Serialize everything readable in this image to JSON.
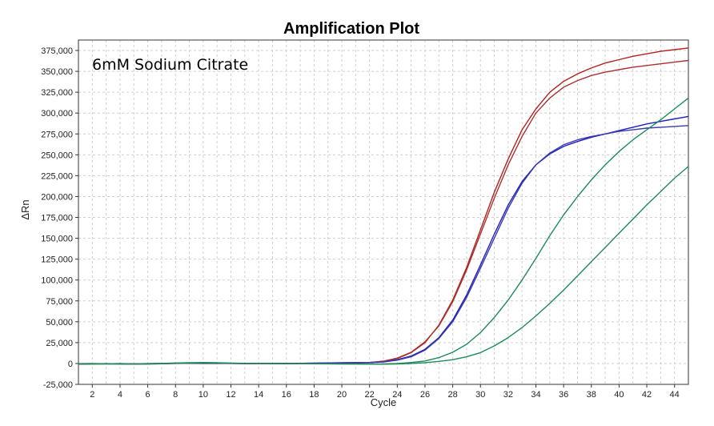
{
  "chart_data": {
    "type": "line",
    "title": "Amplification Plot",
    "annotation": "6mM Sodium Citrate",
    "xlabel": "Cycle",
    "ylabel": "ΔRn",
    "xlim": [
      1,
      45
    ],
    "ylim": [
      -25000,
      387500
    ],
    "x_ticks": [
      2,
      4,
      6,
      8,
      10,
      12,
      14,
      16,
      18,
      20,
      22,
      24,
      26,
      28,
      30,
      32,
      34,
      36,
      38,
      40,
      42,
      44
    ],
    "x_tick_labels": [
      "2",
      "4",
      "6",
      "8",
      "10",
      "12",
      "14",
      "16",
      "18",
      "20",
      "22",
      "24",
      "26",
      "28",
      "30",
      "32",
      "34",
      "36",
      "38",
      "40",
      "42",
      "44"
    ],
    "y_ticks": [
      -25000,
      0,
      25000,
      50000,
      75000,
      100000,
      125000,
      150000,
      175000,
      200000,
      225000,
      250000,
      275000,
      300000,
      325000,
      350000,
      375000
    ],
    "y_tick_labels": [
      "-25,000",
      "0",
      "25,000",
      "50,000",
      "75,000",
      "100,000",
      "125,000",
      "150,000",
      "175,000",
      "200,000",
      "225,000",
      "250,000",
      "275,000",
      "300,000",
      "325,000",
      "350,000",
      "375,000"
    ],
    "grid": true,
    "x": [
      1,
      2,
      3,
      4,
      5,
      6,
      7,
      8,
      9,
      10,
      11,
      12,
      13,
      14,
      15,
      16,
      17,
      18,
      19,
      20,
      21,
      22,
      23,
      24,
      25,
      26,
      27,
      28,
      29,
      30,
      31,
      32,
      33,
      34,
      35,
      36,
      37,
      38,
      39,
      40,
      41,
      42,
      43,
      44,
      45
    ],
    "series": [
      {
        "color": "#b22222",
        "values": [
          -800,
          -600,
          -400,
          -500,
          -700,
          -600,
          -300,
          0,
          200,
          100,
          0,
          200,
          -100,
          0,
          -200,
          -300,
          -100,
          100,
          300,
          500,
          600,
          1000,
          2500,
          6000,
          13000,
          25000,
          46000,
          76000,
          115000,
          160000,
          205000,
          245000,
          280000,
          305000,
          325000,
          338000,
          347000,
          354000,
          360000,
          364000,
          368000,
          371000,
          374000,
          376000,
          378000
        ]
      },
      {
        "color": "#a83232",
        "values": [
          -600,
          -400,
          -300,
          -300,
          -500,
          -400,
          -200,
          100,
          100,
          0,
          100,
          100,
          0,
          -100,
          -100,
          -200,
          0,
          200,
          400,
          600,
          700,
          1200,
          2800,
          6500,
          13500,
          26000,
          45000,
          74000,
          112000,
          155000,
          198000,
          238000,
          272000,
          300000,
          318000,
          331000,
          339000,
          345000,
          349000,
          352000,
          355000,
          357000,
          359000,
          361000,
          363000
        ]
      },
      {
        "color": "#2020c0",
        "values": [
          -500,
          -300,
          -200,
          -400,
          -300,
          -200,
          0,
          300,
          400,
          200,
          100,
          0,
          -100,
          0,
          100,
          0,
          100,
          300,
          700,
          1000,
          1200,
          1300,
          2000,
          4500,
          9000,
          17000,
          31000,
          52000,
          82000,
          118000,
          155000,
          190000,
          218000,
          238000,
          251000,
          260000,
          266000,
          271000,
          275000,
          279000,
          283000,
          287000,
          290000,
          293000,
          296000
        ]
      },
      {
        "color": "#3a3aa8",
        "values": [
          -400,
          -300,
          -300,
          -200,
          -400,
          -300,
          -100,
          200,
          300,
          300,
          200,
          100,
          0,
          100,
          0,
          100,
          200,
          400,
          600,
          800,
          1000,
          1100,
          1800,
          4000,
          8000,
          16000,
          30000,
          50000,
          79000,
          114000,
          150000,
          186000,
          216000,
          238000,
          252000,
          262000,
          268000,
          272000,
          275000,
          278000,
          280000,
          282000,
          283000,
          284000,
          285000
        ]
      },
      {
        "color": "#1e8a5a",
        "values": [
          -200,
          -100,
          -300,
          -200,
          -300,
          -200,
          100,
          600,
          900,
          1200,
          900,
          500,
          200,
          100,
          0,
          -100,
          -200,
          -200,
          -300,
          -400,
          -500,
          -600,
          -500,
          0,
          1200,
          3000,
          7000,
          13500,
          23000,
          37000,
          55000,
          76000,
          100000,
          126000,
          153000,
          178000,
          200000,
          220000,
          238000,
          254000,
          268000,
          280000,
          292000,
          305000,
          318000
        ]
      },
      {
        "color": "#1e8a5a",
        "values": [
          -600,
          -500,
          -600,
          -500,
          -600,
          -500,
          -300,
          200,
          500,
          800,
          600,
          300,
          100,
          0,
          -100,
          -200,
          -200,
          -300,
          -400,
          -500,
          -600,
          -700,
          -800,
          -600,
          0,
          1000,
          2500,
          4500,
          8000,
          13000,
          21000,
          31000,
          43000,
          57000,
          72000,
          88000,
          105000,
          122000,
          139000,
          156000,
          173000,
          190000,
          206000,
          222000,
          236000
        ]
      }
    ]
  }
}
